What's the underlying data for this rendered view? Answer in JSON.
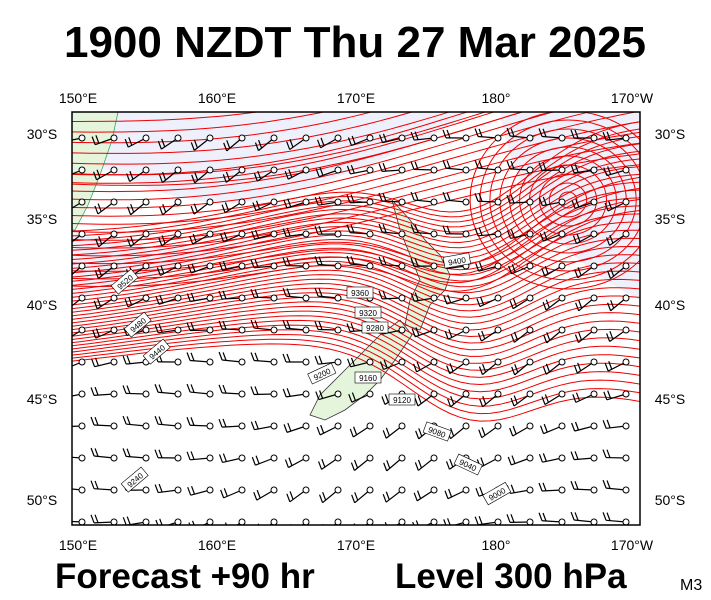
{
  "header": {
    "title": "1900 NZDT Thu 27 Mar 2025"
  },
  "map": {
    "lon_labels": [
      "150°E",
      "160°E",
      "170°E",
      "180°",
      "170°W"
    ],
    "lat_labels": [
      "30°S",
      "35°S",
      "40°S",
      "45°S",
      "50°S"
    ],
    "contour_labels": [
      "9400",
      "9360",
      "9320",
      "9280",
      "9200",
      "9160",
      "9120",
      "9080",
      "9040",
      "9000",
      "9480",
      "9440",
      "9520",
      "9240"
    ]
  },
  "footer": {
    "forecast": "Forecast +90 hr",
    "level": "Level 300 hPa",
    "model": "M3"
  }
}
